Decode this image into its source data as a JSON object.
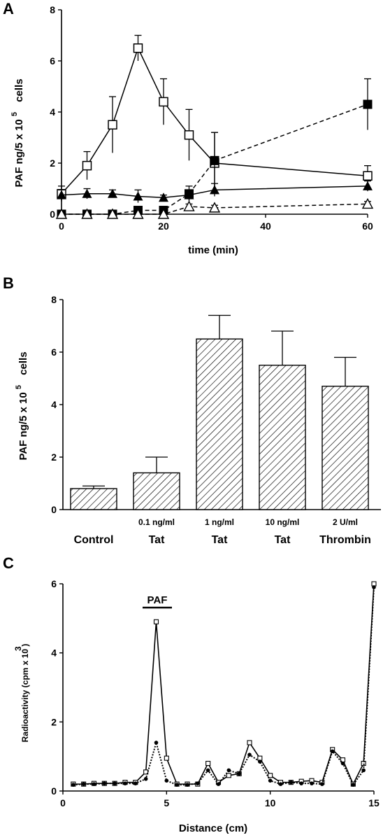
{
  "chart_data": [
    {
      "panel": "A",
      "type": "line",
      "xlabel": "time   (min)",
      "ylabel": "PAF  ng/5 x 10",
      "ylabel_sup": "5",
      "ylabel_suffix": "cells",
      "xlim": [
        0,
        60
      ],
      "ylim": [
        0,
        8
      ],
      "xticks": [
        0,
        20,
        40,
        60
      ],
      "yticks": [
        0,
        2,
        4,
        6,
        8
      ],
      "series": [
        {
          "marker": "open-square",
          "dash": "solid",
          "x": [
            0,
            5,
            10,
            15,
            20,
            25,
            30,
            60
          ],
          "y": [
            0.8,
            1.9,
            3.5,
            6.5,
            4.4,
            3.1,
            2.0,
            1.5
          ],
          "err": [
            0.3,
            0.55,
            1.1,
            0.5,
            0.9,
            1.0,
            1.2,
            0.4
          ]
        },
        {
          "marker": "filled-square",
          "dash": "dashed",
          "x": [
            0,
            5,
            10,
            15,
            20,
            25,
            30,
            60
          ],
          "y": [
            0.0,
            0.0,
            0.0,
            0.15,
            0.15,
            0.8,
            2.1,
            4.3
          ],
          "err": [
            0,
            0,
            0,
            0,
            0,
            0.3,
            1.1,
            1.0
          ]
        },
        {
          "marker": "filled-triangle",
          "dash": "solid",
          "x": [
            0,
            5,
            10,
            15,
            20,
            25,
            30,
            60
          ],
          "y": [
            0.75,
            0.8,
            0.8,
            0.7,
            0.65,
            0.75,
            0.95,
            1.1
          ],
          "err": [
            0.2,
            0.2,
            0.15,
            0.25,
            0.1,
            0.2,
            0.25,
            0.2
          ]
        },
        {
          "marker": "open-triangle",
          "dash": "dashed",
          "x": [
            0,
            5,
            10,
            15,
            20,
            25,
            30,
            60
          ],
          "y": [
            0.0,
            0.0,
            0.0,
            0.0,
            0.0,
            0.3,
            0.25,
            0.4
          ],
          "err": [
            0,
            0,
            0,
            0,
            0,
            0.1,
            0.1,
            0.1
          ]
        }
      ]
    },
    {
      "panel": "B",
      "type": "bar",
      "ylabel": "PAF  ng/5 x 10",
      "ylabel_sup": "5",
      "ylabel_suffix": "cells",
      "ylim": [
        0,
        8
      ],
      "yticks": [
        0,
        2,
        4,
        6,
        8
      ],
      "categories": [
        "Control",
        "Tat",
        "Tat",
        "Tat",
        "Thrombin"
      ],
      "sublabels": [
        "",
        "0.1   ng/ml",
        "1   ng/ml",
        "10   ng/ml",
        "2   U/ml"
      ],
      "values": [
        0.8,
        1.4,
        6.5,
        5.5,
        4.7
      ],
      "errors": [
        0.1,
        0.6,
        0.9,
        1.3,
        1.1
      ]
    },
    {
      "panel": "C",
      "type": "line",
      "xlabel": "Distance  (cm)",
      "ylabel": "Radioactivity   (cpm  x  10    )",
      "ylabel_sup": "3",
      "annotation": "PAF",
      "xlim": [
        0,
        15
      ],
      "ylim": [
        0,
        6
      ],
      "xticks": [
        0,
        5,
        10,
        15
      ],
      "yticks": [
        0,
        2,
        4,
        6
      ],
      "series": [
        {
          "marker": "open-square-small",
          "dash": "solid",
          "x": [
            0.5,
            1,
            1.5,
            2,
            2.5,
            3,
            3.5,
            4,
            4.5,
            5,
            5.5,
            6,
            6.5,
            7,
            7.5,
            8,
            8.5,
            9,
            9.5,
            10,
            10.5,
            11,
            11.5,
            12,
            12.5,
            13,
            13.5,
            14,
            14.5,
            15
          ],
          "y": [
            0.2,
            0.2,
            0.22,
            0.22,
            0.22,
            0.25,
            0.25,
            0.55,
            4.9,
            0.95,
            0.2,
            0.2,
            0.2,
            0.8,
            0.25,
            0.45,
            0.5,
            1.4,
            0.95,
            0.45,
            0.25,
            0.25,
            0.28,
            0.3,
            0.25,
            1.2,
            0.9,
            0.2,
            0.8,
            6.0
          ]
        },
        {
          "marker": "filled-circle-small",
          "dash": "dotted",
          "x": [
            0.5,
            1,
            1.5,
            2,
            2.5,
            3,
            3.5,
            4,
            4.5,
            5,
            5.5,
            6,
            6.5,
            7,
            7.5,
            8,
            8.5,
            9,
            9.5,
            10,
            10.5,
            11,
            11.5,
            12,
            12.5,
            13,
            13.5,
            14,
            14.5,
            15
          ],
          "y": [
            0.18,
            0.2,
            0.2,
            0.22,
            0.22,
            0.22,
            0.22,
            0.35,
            1.4,
            0.3,
            0.18,
            0.18,
            0.22,
            0.6,
            0.2,
            0.6,
            0.5,
            1.05,
            0.85,
            0.3,
            0.2,
            0.25,
            0.22,
            0.22,
            0.2,
            1.15,
            0.8,
            0.18,
            0.6,
            5.9
          ]
        }
      ]
    }
  ]
}
